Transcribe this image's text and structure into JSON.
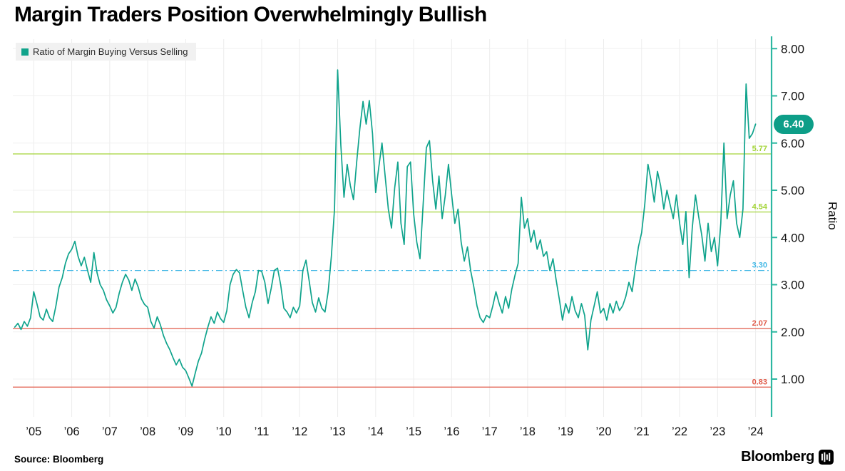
{
  "title": "Margin Traders Position Overwhelmingly Bullish",
  "legend": {
    "label": "Ratio of Margin Buying Versus Selling",
    "swatch_color": "#11a38b"
  },
  "source": "Source: Bloomberg",
  "brand": {
    "name": "Bloomberg"
  },
  "chart_data": {
    "type": "line",
    "title": "Margin Traders Position Overwhelmingly Bullish",
    "ylabel": "Ratio",
    "xlabel": "",
    "grid": true,
    "legend_position": "top-left",
    "axis_color": "#2cb7a1",
    "xlim": [
      2004.45,
      2024.42
    ],
    "ylim": [
      0.2,
      8.2
    ],
    "y_ticks": [
      {
        "value": 1,
        "label": "1.00"
      },
      {
        "value": 2,
        "label": "2.00"
      },
      {
        "value": 3,
        "label": "3.00"
      },
      {
        "value": 4,
        "label": "4.00"
      },
      {
        "value": 5,
        "label": "5.00"
      },
      {
        "value": 6,
        "label": "6.00"
      },
      {
        "value": 7,
        "label": "7.00"
      },
      {
        "value": 8,
        "label": "8.00"
      }
    ],
    "x_ticks": [
      {
        "value": 2005,
        "label": "’05"
      },
      {
        "value": 2006,
        "label": "’06"
      },
      {
        "value": 2007,
        "label": "’07"
      },
      {
        "value": 2008,
        "label": "’08"
      },
      {
        "value": 2009,
        "label": "’09"
      },
      {
        "value": 2010,
        "label": "’10"
      },
      {
        "value": 2011,
        "label": "’11"
      },
      {
        "value": 2012,
        "label": "’12"
      },
      {
        "value": 2013,
        "label": "’13"
      },
      {
        "value": 2014,
        "label": "’14"
      },
      {
        "value": 2015,
        "label": "’15"
      },
      {
        "value": 2016,
        "label": "’16"
      },
      {
        "value": 2017,
        "label": "’17"
      },
      {
        "value": 2018,
        "label": "’18"
      },
      {
        "value": 2019,
        "label": "’19"
      },
      {
        "value": 2020,
        "label": "’20"
      },
      {
        "value": 2021,
        "label": "’21"
      },
      {
        "value": 2022,
        "label": "’22"
      },
      {
        "value": 2023,
        "label": "’23"
      },
      {
        "value": 2024,
        "label": "’24"
      }
    ],
    "reference_lines": [
      {
        "value": 5.77,
        "label": "5.77",
        "color": "#a3d438",
        "style": "solid"
      },
      {
        "value": 4.54,
        "label": "4.54",
        "color": "#a3d438",
        "style": "solid"
      },
      {
        "value": 3.3,
        "label": "3.30",
        "color": "#45b9e6",
        "style": "dashed"
      },
      {
        "value": 2.07,
        "label": "2.07",
        "color": "#e05a49",
        "style": "solid"
      },
      {
        "value": 0.83,
        "label": "0.83",
        "color": "#e05a49",
        "style": "solid"
      }
    ],
    "badge": {
      "label": "6.40",
      "value": 6.4,
      "color": "#0d9e88"
    },
    "series": [
      {
        "name": "Ratio of Margin Buying Versus Selling",
        "color": "#0fa38c",
        "x_start": 2004.5,
        "x_step": 0.0833333,
        "values": [
          2.1,
          2.18,
          2.05,
          2.22,
          2.12,
          2.3,
          2.85,
          2.6,
          2.32,
          2.25,
          2.48,
          2.3,
          2.22,
          2.55,
          2.95,
          3.15,
          3.45,
          3.65,
          3.75,
          3.92,
          3.6,
          3.4,
          3.58,
          3.3,
          3.05,
          3.68,
          3.25,
          3.0,
          2.88,
          2.68,
          2.55,
          2.4,
          2.52,
          2.82,
          3.05,
          3.22,
          3.1,
          2.88,
          3.12,
          2.95,
          2.7,
          2.58,
          2.52,
          2.22,
          2.08,
          2.32,
          2.15,
          1.92,
          1.75,
          1.62,
          1.45,
          1.3,
          1.42,
          1.25,
          1.18,
          1.02,
          0.85,
          1.12,
          1.38,
          1.55,
          1.85,
          2.1,
          2.32,
          2.18,
          2.42,
          2.28,
          2.2,
          2.45,
          3.0,
          3.22,
          3.32,
          3.25,
          2.88,
          2.52,
          2.3,
          2.62,
          2.85,
          3.3,
          3.28,
          3.05,
          2.6,
          2.92,
          3.3,
          3.35,
          3.0,
          2.5,
          2.42,
          2.3,
          2.52,
          2.4,
          2.55,
          3.3,
          3.52,
          3.08,
          2.62,
          2.42,
          2.72,
          2.5,
          2.42,
          2.85,
          3.6,
          4.6,
          7.55,
          5.95,
          4.85,
          5.55,
          5.1,
          4.8,
          5.6,
          6.3,
          6.88,
          6.4,
          6.9,
          6.2,
          4.95,
          5.5,
          6.0,
          5.3,
          4.6,
          4.2,
          5.05,
          5.6,
          4.3,
          3.85,
          5.5,
          5.6,
          4.5,
          3.9,
          3.55,
          4.7,
          5.9,
          6.05,
          5.2,
          4.6,
          5.3,
          4.4,
          4.9,
          5.55,
          4.9,
          4.3,
          4.6,
          3.9,
          3.5,
          3.8,
          3.3,
          2.95,
          2.55,
          2.3,
          2.2,
          2.35,
          2.3,
          2.55,
          2.85,
          2.6,
          2.4,
          2.75,
          2.5,
          2.9,
          3.2,
          3.45,
          4.85,
          4.2,
          4.4,
          3.9,
          4.15,
          3.75,
          3.95,
          3.6,
          3.7,
          3.3,
          3.55,
          3.1,
          2.7,
          2.25,
          2.6,
          2.4,
          2.75,
          2.45,
          2.3,
          2.6,
          2.35,
          1.62,
          2.25,
          2.55,
          2.85,
          2.4,
          2.5,
          2.25,
          2.6,
          2.4,
          2.65,
          2.45,
          2.55,
          2.75,
          3.05,
          2.85,
          3.35,
          3.8,
          4.1,
          4.7,
          5.55,
          5.2,
          4.75,
          5.4,
          5.1,
          4.6,
          5.0,
          4.7,
          4.4,
          4.9,
          4.3,
          3.85,
          4.55,
          3.15,
          4.2,
          4.9,
          4.45,
          4.05,
          3.5,
          4.3,
          3.7,
          4.0,
          3.4,
          4.3,
          6.0,
          4.4,
          4.9,
          5.2,
          4.3,
          4.0,
          4.6,
          7.25,
          6.1,
          6.2,
          6.4
        ]
      }
    ]
  }
}
